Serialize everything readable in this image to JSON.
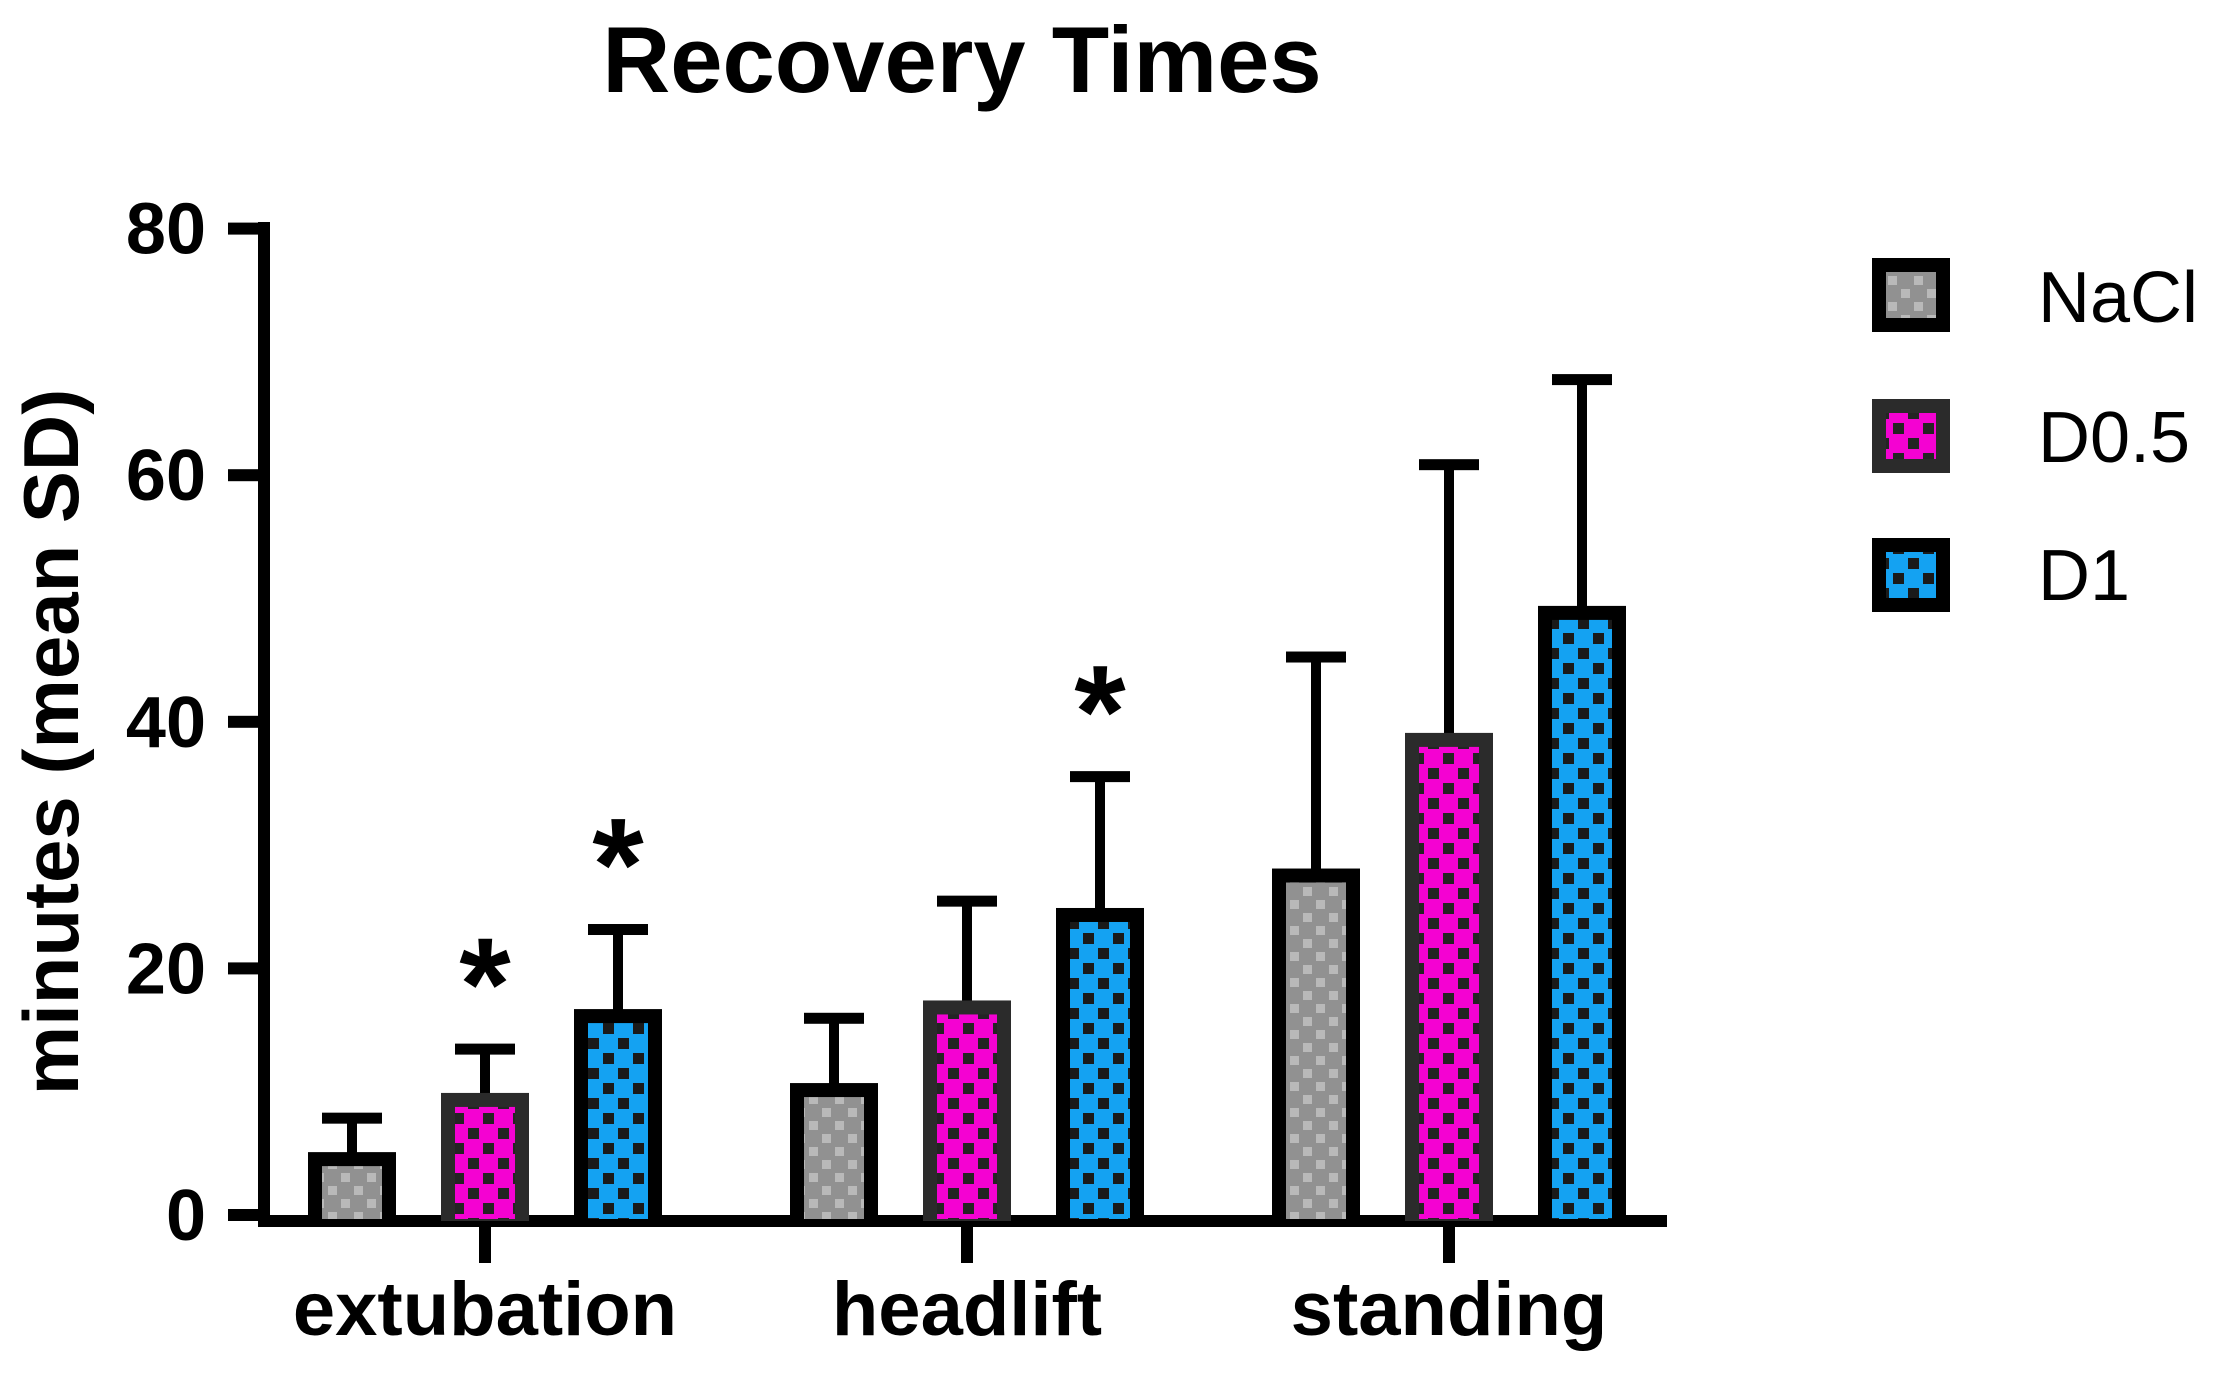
{
  "title": "Recovery Times",
  "chart_data": {
    "type": "bar",
    "title": "Recovery Times",
    "ylabel": "minutes (mean SD)",
    "xlabel": "",
    "ylim": [
      0,
      80
    ],
    "yticks": [
      0,
      20,
      40,
      60,
      80
    ],
    "grid": false,
    "legend_position": "right",
    "categories": [
      "extubation",
      "headlift",
      "standing"
    ],
    "series": [
      {
        "name": "NaCl",
        "values": [
          5.1,
          10.7,
          28.1
        ],
        "sd_upper": [
          3.2,
          5.7,
          17.6
        ],
        "significance": [
          "",
          "",
          ""
        ]
      },
      {
        "name": "D0.5",
        "values": [
          9.9,
          17.4,
          39.1
        ],
        "sd_upper": [
          4.0,
          8.5,
          22.2
        ],
        "significance": [
          "*",
          "",
          ""
        ]
      },
      {
        "name": "D1",
        "values": [
          16.7,
          24.9,
          49.4
        ],
        "sd_upper": [
          6.9,
          11.1,
          18.8
        ],
        "significance": [
          "*",
          "*",
          ""
        ]
      }
    ]
  },
  "legend": {
    "items": [
      {
        "label": "NaCl"
      },
      {
        "label": "D0.5"
      },
      {
        "label": "D1"
      }
    ]
  },
  "colors": {
    "background": "#ffffff",
    "axis": "#000000",
    "text": "#000000",
    "nacl_fill": "#919191",
    "nacl_dot": "#b9b9b9",
    "nacl_border": "#000000",
    "d05_fill": "#f402d2",
    "d05_dot": "#242424",
    "d05_border": "#2b2b2b",
    "d1_fill": "#14a2f2",
    "d1_dot": "#1a1a1a",
    "d1_border": "#000000"
  }
}
